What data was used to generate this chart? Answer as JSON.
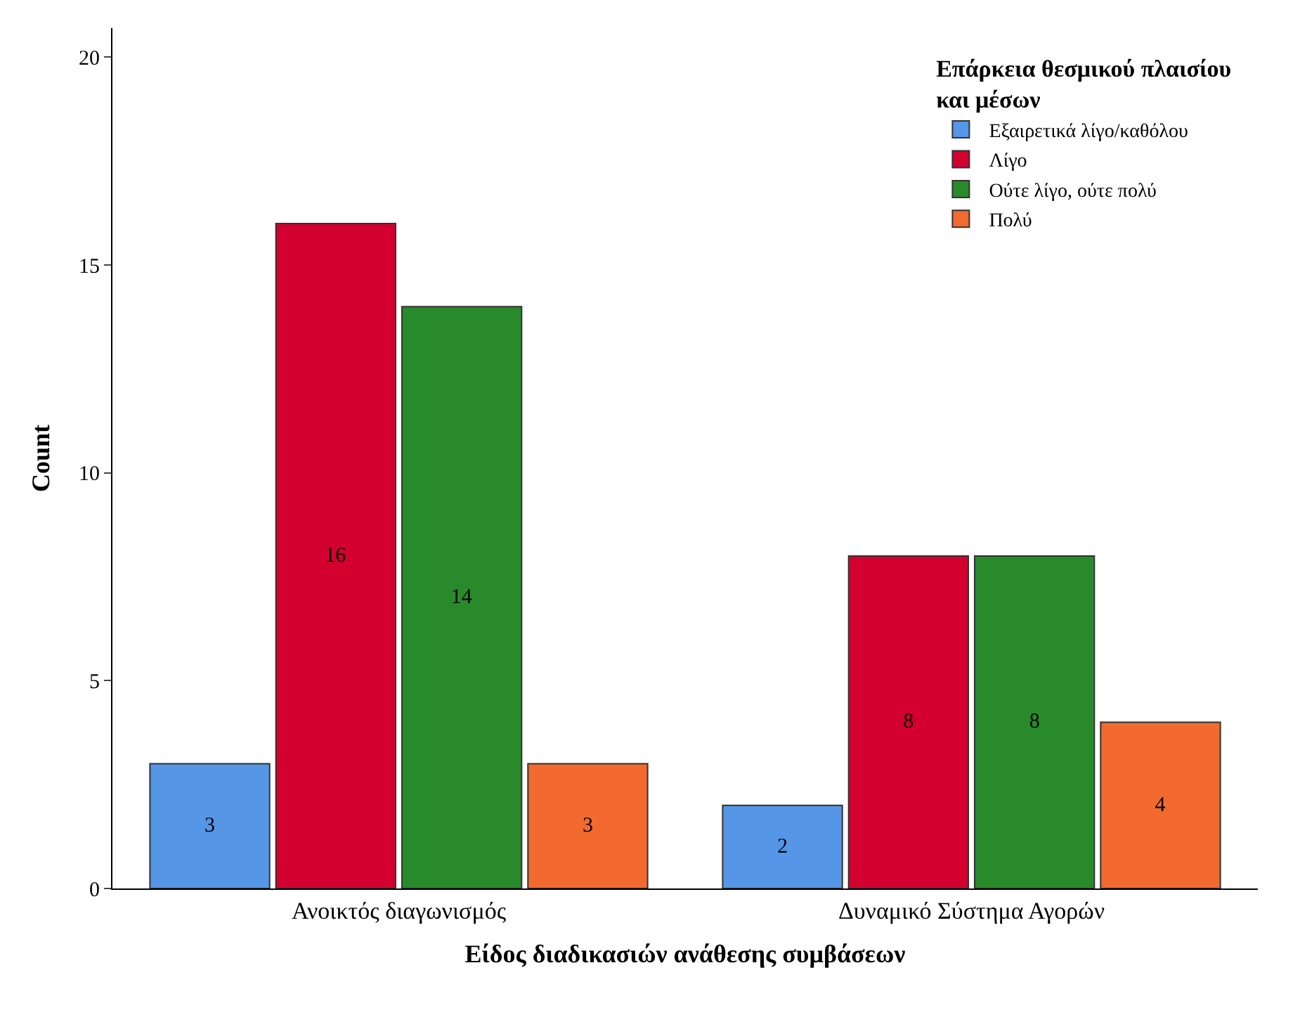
{
  "chart_data": {
    "type": "bar",
    "xlabel": "Είδος διαδικασιών ανάθεσης συμβάσεων",
    "ylabel": "Count",
    "legend_title": "Επάρκεια θεσμικού πλαισίου και μέσων",
    "categories": [
      "Ανοικτός διαγωνισμός",
      "Δυναμικό Σύστημα Αγορών"
    ],
    "series": [
      {
        "name": "Εξαιρετικά λίγο/καθόλου",
        "color": "#5596e6",
        "values": [
          3,
          2
        ]
      },
      {
        "name": "Λίγο",
        "color": "#d3002f",
        "values": [
          16,
          8
        ]
      },
      {
        "name": "Ούτε λίγο, ούτε πολύ",
        "color": "#288a2a",
        "values": [
          14,
          8
        ]
      },
      {
        "name": "Πολύ",
        "color": "#f26a2e",
        "values": [
          3,
          4
        ]
      }
    ],
    "ylim": [
      0,
      20.7
    ],
    "yticks": [
      0,
      5,
      10,
      15,
      20
    ],
    "grid": false,
    "legend": "top right",
    "data_labels": true
  }
}
